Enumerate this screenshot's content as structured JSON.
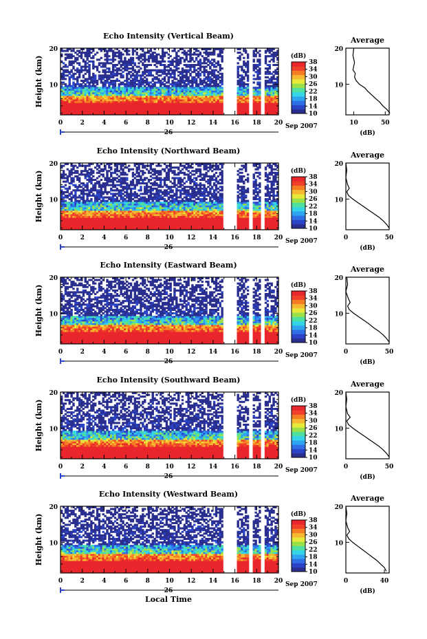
{
  "chart_data": [
    {
      "type": "heatmap",
      "title": "Echo Intensity (Vertical Beam)",
      "ylabel": "Height (km)",
      "xlim": [
        0,
        20
      ],
      "ylim": [
        1.5,
        20
      ],
      "x_ticks": [
        "0",
        "2",
        "4",
        "6",
        "8",
        "10",
        "12",
        "14",
        "16",
        "18",
        "20"
      ],
      "y_ticks": [
        "10",
        "20"
      ],
      "date_marker": "26",
      "date_label": "Sep 2007",
      "colorbar": {
        "unit": "(dB)",
        "ticks": [
          "10",
          "14",
          "18",
          "22",
          "26",
          "30",
          "34",
          "38"
        ],
        "range": [
          10,
          38
        ]
      },
      "gaps_hours": [
        [
          14.9,
          16.2
        ],
        [
          17.2,
          17.6
        ],
        [
          18.4,
          18.8
        ]
      ],
      "profile": {
        "title": "Average",
        "xlabel": "(dB)",
        "x_ticks": [
          "10",
          "50"
        ],
        "xlim": [
          0,
          55
        ],
        "height_km": [
          20,
          18,
          16,
          14,
          13,
          12,
          11,
          10,
          9,
          8,
          7,
          6,
          5,
          4,
          3,
          2
        ],
        "values_db": [
          10,
          9,
          11,
          9,
          12,
          11,
          13,
          17,
          24,
          28,
          33,
          38,
          43,
          47,
          52,
          56
        ]
      }
    },
    {
      "type": "heatmap",
      "title": "Echo Intensity (Northward Beam)",
      "ylabel": "Height (km)",
      "xlim": [
        0,
        20
      ],
      "ylim": [
        1.5,
        20
      ],
      "x_ticks": [
        "0",
        "2",
        "4",
        "6",
        "8",
        "10",
        "12",
        "14",
        "16",
        "18",
        "20"
      ],
      "y_ticks": [
        "10",
        "20"
      ],
      "date_marker": "26",
      "date_label": "Sep 2007",
      "colorbar": {
        "unit": "(dB)",
        "ticks": [
          "10",
          "14",
          "18",
          "22",
          "26",
          "30",
          "34",
          "38"
        ],
        "range": [
          10,
          38
        ]
      },
      "gaps_hours": [
        [
          14.9,
          16.2
        ],
        [
          17.2,
          17.6
        ],
        [
          18.4,
          18.8
        ]
      ],
      "profile": {
        "title": "Average",
        "xlabel": "(dB)",
        "x_ticks": [
          "0",
          "50"
        ],
        "xlim": [
          0,
          50
        ],
        "height_km": [
          20,
          18,
          16,
          14,
          13,
          12,
          11,
          10,
          9,
          8,
          7,
          6,
          5,
          4,
          3,
          2
        ],
        "values_db": [
          0,
          1,
          0,
          2,
          4,
          1,
          3,
          8,
          14,
          20,
          26,
          32,
          38,
          43,
          47,
          50
        ]
      }
    },
    {
      "type": "heatmap",
      "title": "Echo Intensity (Eastward Beam)",
      "ylabel": "Height (km)",
      "xlim": [
        0,
        20
      ],
      "ylim": [
        1.5,
        20
      ],
      "x_ticks": [
        "0",
        "2",
        "4",
        "6",
        "8",
        "10",
        "12",
        "14",
        "16",
        "18",
        "20"
      ],
      "y_ticks": [
        "10",
        "20"
      ],
      "date_marker": "26",
      "date_label": "Sep 2007",
      "colorbar": {
        "unit": "(dB)",
        "ticks": [
          "10",
          "14",
          "18",
          "22",
          "26",
          "30",
          "34",
          "38"
        ],
        "range": [
          10,
          38
        ]
      },
      "gaps_hours": [
        [
          14.9,
          16.2
        ],
        [
          17.2,
          17.6
        ],
        [
          18.4,
          18.8
        ]
      ],
      "profile": {
        "title": "Average",
        "xlabel": "(dB)",
        "x_ticks": [
          "0",
          "50"
        ],
        "xlim": [
          0,
          50
        ],
        "height_km": [
          20,
          18,
          16,
          14,
          13,
          12,
          11,
          10,
          9,
          8,
          7,
          6,
          5,
          4,
          3,
          2
        ],
        "values_db": [
          1,
          2,
          0,
          3,
          5,
          2,
          4,
          9,
          15,
          21,
          27,
          32,
          38,
          43,
          47,
          50
        ]
      }
    },
    {
      "type": "heatmap",
      "title": "Echo Intensity (Southward Beam)",
      "ylabel": "Height (km)",
      "xlim": [
        0,
        20
      ],
      "ylim": [
        1.5,
        20
      ],
      "x_ticks": [
        "0",
        "2",
        "4",
        "6",
        "8",
        "10",
        "12",
        "14",
        "16",
        "18",
        "20"
      ],
      "y_ticks": [
        "10",
        "20"
      ],
      "date_marker": "26",
      "date_label": "Sep 2007",
      "colorbar": {
        "unit": "(dB)",
        "ticks": [
          "10",
          "14",
          "18",
          "22",
          "26",
          "30",
          "34",
          "38"
        ],
        "range": [
          10,
          38
        ]
      },
      "gaps_hours": [
        [
          14.9,
          16.2
        ],
        [
          17.2,
          17.6
        ],
        [
          18.4,
          18.8
        ]
      ],
      "profile": {
        "title": "Average",
        "xlabel": "(dB)",
        "x_ticks": [
          "0",
          "50"
        ],
        "xlim": [
          0,
          50
        ],
        "height_km": [
          20,
          18,
          16,
          14,
          13,
          12,
          11,
          10,
          9,
          8,
          7,
          6,
          5,
          4,
          3,
          2
        ],
        "values_db": [
          0,
          1,
          0,
          2,
          5,
          1,
          3,
          8,
          14,
          20,
          26,
          32,
          38,
          43,
          47,
          50
        ]
      }
    },
    {
      "type": "heatmap",
      "title": "Echo Intensity (Westward Beam)",
      "ylabel": "Height (km)",
      "xlabel": "Local Time",
      "xlim": [
        0,
        20
      ],
      "ylim": [
        1.5,
        20
      ],
      "x_ticks": [
        "0",
        "2",
        "4",
        "6",
        "8",
        "10",
        "12",
        "14",
        "16",
        "18",
        "20"
      ],
      "y_ticks": [
        "10",
        "20"
      ],
      "date_marker": "26",
      "date_label": "Sep 2007",
      "colorbar": {
        "unit": "(dB)",
        "ticks": [
          "10",
          "14",
          "18",
          "22",
          "26",
          "30",
          "34",
          "38"
        ],
        "range": [
          10,
          38
        ]
      },
      "gaps_hours": [
        [
          14.9,
          16.2
        ],
        [
          17.2,
          17.6
        ],
        [
          18.4,
          18.8
        ]
      ],
      "profile": {
        "title": "Average",
        "xlabel": "(dB)",
        "x_ticks": [
          "0",
          "40"
        ],
        "xlim": [
          0,
          45
        ],
        "height_km": [
          20,
          18,
          16,
          14,
          13,
          12,
          11,
          10,
          9,
          8,
          7,
          6,
          5,
          4,
          3,
          2
        ],
        "values_db": [
          0,
          1,
          0,
          2,
          4,
          1,
          3,
          7,
          12,
          17,
          22,
          27,
          32,
          36,
          40,
          42
        ]
      }
    }
  ]
}
